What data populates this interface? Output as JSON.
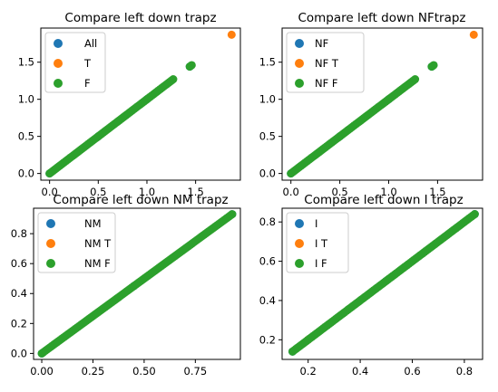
{
  "chart_data": [
    {
      "type": "scatter",
      "title": "Compare left down trapz",
      "xlim": [
        -0.09,
        1.96
      ],
      "ylim": [
        -0.09,
        1.96
      ],
      "xticks": [
        0.0,
        0.5,
        1.0,
        1.5
      ],
      "yticks": [
        0.0,
        0.5,
        1.0,
        1.5
      ],
      "tick_labels": [
        "0.0",
        "0.5",
        "1.0",
        "1.5"
      ],
      "legend": "top-left",
      "series": [
        {
          "name": "All",
          "color": "#1f77b4",
          "x": [
            0.0,
            0.5,
            1.0,
            1.44
          ],
          "y": [
            0.0,
            0.5,
            1.0,
            1.44
          ]
        },
        {
          "name": "T",
          "color": "#ff7f0e",
          "x": [
            1.87
          ],
          "y": [
            1.87
          ]
        },
        {
          "name": "F",
          "color": "#2ca02c",
          "x": [
            0.0,
            0.1,
            0.2,
            0.3,
            0.4,
            0.5,
            0.6,
            0.7,
            0.8,
            0.9,
            1.0,
            1.05,
            1.12,
            1.22,
            1.27,
            1.44,
            1.46
          ],
          "y": [
            0.0,
            0.1,
            0.2,
            0.3,
            0.4,
            0.5,
            0.6,
            0.7,
            0.8,
            0.9,
            1.0,
            1.05,
            1.12,
            1.22,
            1.27,
            1.44,
            1.46
          ]
        }
      ]
    },
    {
      "type": "scatter",
      "title": "Compare left down NFtrapz",
      "xlim": [
        -0.09,
        1.96
      ],
      "ylim": [
        -0.09,
        1.96
      ],
      "xticks": [
        0.0,
        0.5,
        1.0,
        1.5
      ],
      "yticks": [
        0.0,
        0.5,
        1.0,
        1.5
      ],
      "tick_labels": [
        "0.0",
        "0.5",
        "1.0",
        "1.5"
      ],
      "legend": "top-left",
      "series": [
        {
          "name": "NF",
          "color": "#1f77b4",
          "x": [
            0.0,
            0.5,
            1.0,
            1.44
          ],
          "y": [
            0.0,
            0.5,
            1.0,
            1.44
          ]
        },
        {
          "name": "NF T",
          "color": "#ff7f0e",
          "x": [
            1.87
          ],
          "y": [
            1.87
          ]
        },
        {
          "name": "NF F",
          "color": "#2ca02c",
          "x": [
            0.0,
            0.1,
            0.2,
            0.3,
            0.4,
            0.5,
            0.6,
            0.7,
            0.8,
            0.9,
            1.0,
            1.05,
            1.12,
            1.22,
            1.27,
            1.44,
            1.46
          ],
          "y": [
            0.0,
            0.1,
            0.2,
            0.3,
            0.4,
            0.5,
            0.6,
            0.7,
            0.8,
            0.9,
            1.0,
            1.05,
            1.12,
            1.22,
            1.27,
            1.44,
            1.46
          ]
        }
      ]
    },
    {
      "type": "scatter",
      "title": "Compare left down NM trapz",
      "xlim": [
        -0.04,
        0.97
      ],
      "ylim": [
        -0.04,
        0.97
      ],
      "xticks": [
        0.0,
        0.25,
        0.5,
        0.75
      ],
      "yticks": [
        0.0,
        0.2,
        0.4,
        0.6,
        0.8
      ],
      "xtick_labels": [
        "0.00",
        "0.25",
        "0.50",
        "0.75"
      ],
      "ytick_labels": [
        "0.0",
        "0.2",
        "0.4",
        "0.6",
        "0.8"
      ],
      "legend": "top-left",
      "series": [
        {
          "name": "NM",
          "color": "#1f77b4",
          "x": [
            0.0,
            0.45,
            0.93
          ],
          "y": [
            0.0,
            0.45,
            0.93
          ]
        },
        {
          "name": "NM T",
          "color": "#ff7f0e",
          "x": [],
          "y": []
        },
        {
          "name": "NM F",
          "color": "#2ca02c",
          "x": [
            0.0,
            0.05,
            0.1,
            0.15,
            0.2,
            0.25,
            0.3,
            0.35,
            0.4,
            0.45,
            0.5,
            0.55,
            0.6,
            0.65,
            0.7,
            0.75,
            0.8,
            0.85,
            0.9,
            0.93
          ],
          "y": [
            0.0,
            0.05,
            0.1,
            0.15,
            0.2,
            0.25,
            0.3,
            0.35,
            0.4,
            0.45,
            0.5,
            0.55,
            0.6,
            0.65,
            0.7,
            0.75,
            0.8,
            0.85,
            0.9,
            0.93
          ]
        }
      ]
    },
    {
      "type": "scatter",
      "title": "Compare left down I trapz",
      "xlim": [
        0.1,
        0.87
      ],
      "ylim": [
        0.1,
        0.87
      ],
      "xticks": [
        0.2,
        0.4,
        0.6,
        0.8
      ],
      "yticks": [
        0.2,
        0.4,
        0.6,
        0.8
      ],
      "tick_labels": [
        "0.2",
        "0.4",
        "0.6",
        "0.8"
      ],
      "legend": "top-left",
      "series": [
        {
          "name": "I",
          "color": "#1f77b4",
          "x": [
            0.14,
            0.5,
            0.84
          ],
          "y": [
            0.14,
            0.5,
            0.84
          ]
        },
        {
          "name": "I T",
          "color": "#ff7f0e",
          "x": [
            0.2
          ],
          "y": [
            0.2
          ]
        },
        {
          "name": "I F",
          "color": "#2ca02c",
          "x": [
            0.14,
            0.18,
            0.22,
            0.26,
            0.3,
            0.34,
            0.38,
            0.42,
            0.46,
            0.5,
            0.54,
            0.58,
            0.62,
            0.66,
            0.7,
            0.74,
            0.78,
            0.8,
            0.82,
            0.84
          ],
          "y": [
            0.14,
            0.18,
            0.22,
            0.26,
            0.3,
            0.34,
            0.38,
            0.42,
            0.46,
            0.5,
            0.54,
            0.58,
            0.62,
            0.66,
            0.7,
            0.74,
            0.78,
            0.8,
            0.82,
            0.84
          ]
        }
      ]
    }
  ]
}
